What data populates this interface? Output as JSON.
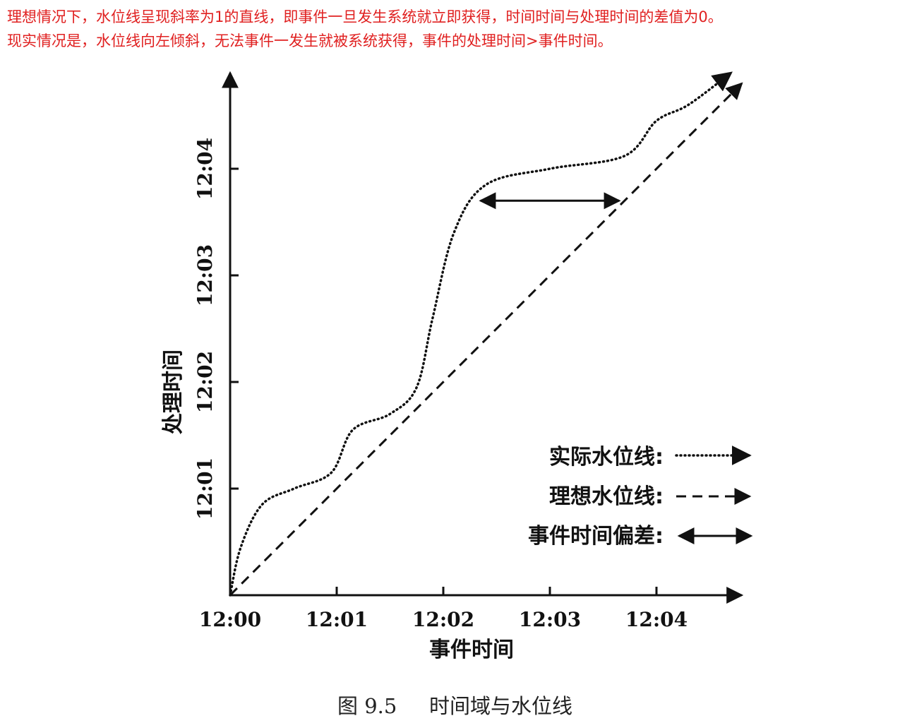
{
  "notes": {
    "line1": "理想情况下，水位线呈现斜率为1的直线，即事件一旦发生系统就立即获得，时间时间与处理时间的差值为0。",
    "line2": "现实情况是，水位线向左倾斜，无法事件一发生就被系统获得，事件的处理时间>事件时间。"
  },
  "caption": {
    "figure": "图 9.5",
    "title": "时间域与水位线"
  },
  "colors": {
    "note": "#e02020",
    "ink": "#111111"
  },
  "chart_data": {
    "type": "line",
    "xlabel": "事件时间",
    "ylabel": "处理时间",
    "x_ticks": [
      "12:00",
      "12:01",
      "12:02",
      "12:03",
      "12:04"
    ],
    "y_ticks": [
      "12:01",
      "12:02",
      "12:03",
      "12:04"
    ],
    "xlim_minutes": [
      0,
      4.8
    ],
    "ylim_minutes": [
      0,
      4.9
    ],
    "grid": false,
    "legend_position": "bottom-right",
    "legend": [
      {
        "label": "实际水位线:",
        "style": "dotted"
      },
      {
        "label": "理想水位线:",
        "style": "dashed"
      },
      {
        "label": "事件时间偏差:",
        "style": "double-arrow"
      }
    ],
    "series": [
      {
        "name": "实际水位线",
        "style": "dotted",
        "points": [
          [
            0.0,
            0.0
          ],
          [
            0.1,
            0.45
          ],
          [
            0.3,
            0.85
          ],
          [
            0.6,
            1.0
          ],
          [
            0.95,
            1.15
          ],
          [
            1.15,
            1.55
          ],
          [
            1.5,
            1.7
          ],
          [
            1.75,
            1.95
          ],
          [
            1.9,
            2.6
          ],
          [
            2.1,
            3.4
          ],
          [
            2.4,
            3.85
          ],
          [
            3.0,
            4.0
          ],
          [
            3.7,
            4.12
          ],
          [
            4.0,
            4.45
          ],
          [
            4.3,
            4.6
          ],
          [
            4.7,
            4.9
          ]
        ]
      },
      {
        "name": "理想水位线",
        "style": "dashed",
        "points": [
          [
            0.0,
            0.0
          ],
          [
            4.8,
            4.8
          ]
        ]
      }
    ],
    "skew_annotation": {
      "style": "double-arrow",
      "processing_time": 3.7,
      "event_time_from": 2.35,
      "event_time_to": 3.65
    }
  }
}
